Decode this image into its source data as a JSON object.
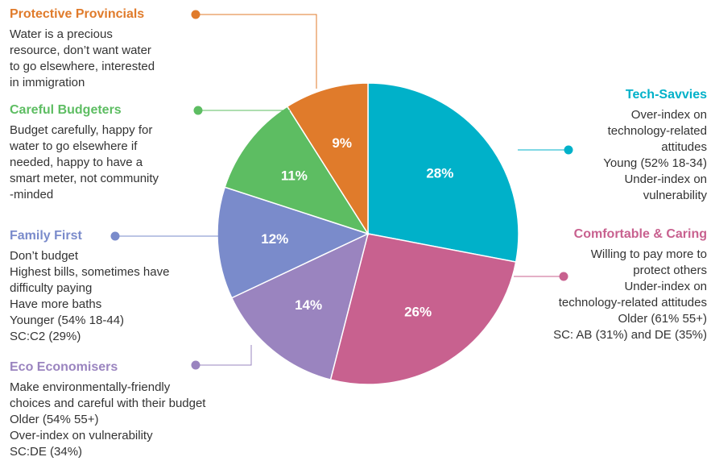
{
  "chart_data": {
    "type": "pie",
    "categories": [
      "Tech-Savvies",
      "Comfortable & Caring",
      "Eco Economisers",
      "Family First",
      "Careful Budgeters",
      "Protective Provincials"
    ],
    "values": [
      28,
      26,
      14,
      12,
      11,
      9
    ],
    "value_labels": [
      "28%",
      "26%",
      "14%",
      "12%",
      "11%",
      "9%"
    ],
    "colors": [
      "#00b1c9",
      "#c8618f",
      "#9a84bf",
      "#7a8bcb",
      "#5dbd62",
      "#e07b2b"
    ],
    "descriptions": [
      [
        "Over-index on",
        "technology-related",
        "attitudes",
        "Young (52% 18-34)",
        "Under-index on",
        "vulnerability"
      ],
      [
        "Willing to pay more to",
        "protect others",
        "Under-index on",
        "technology-related attitudes",
        "Older (61% 55+)",
        "SC: AB (31%) and DE (35%)"
      ],
      [
        "Make environmentally-friendly",
        "choices and careful with their budget",
        "Older (54% 55+)",
        "Over-index on vulnerability",
        "SC:DE (34%)"
      ],
      [
        "Don’t budget",
        "Highest bills, sometimes have",
        "difficulty paying",
        "Have more baths",
        "Younger (54% 18-44)",
        "SC:C2 (29%)"
      ],
      [
        "Budget carefully, happy for",
        "water to go elsewhere if",
        "needed, happy to have a",
        "smart meter, not community",
        "-minded"
      ],
      [
        "Water is a precious",
        "resource, don’t want water",
        "to go elsewhere, interested",
        "in immigration"
      ]
    ]
  }
}
